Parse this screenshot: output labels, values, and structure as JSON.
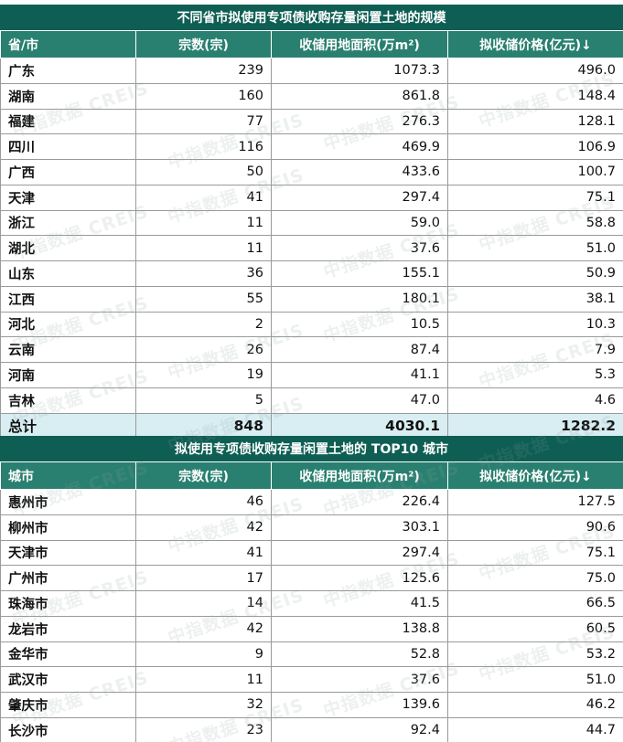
{
  "table1": {
    "title": "不同省市拟使用专项债收购存量闲置土地的规模",
    "headers": [
      "省/市",
      "宗数(宗)",
      "收储用地面积(万m²)",
      "拟收储价格(亿元)↓"
    ],
    "rows": [
      [
        "广东",
        "239",
        "1073.3",
        "496.0"
      ],
      [
        "湖南",
        "160",
        "861.8",
        "148.4"
      ],
      [
        "福建",
        "77",
        "276.3",
        "128.1"
      ],
      [
        "四川",
        "116",
        "469.9",
        "106.9"
      ],
      [
        "广西",
        "50",
        "433.6",
        "100.7"
      ],
      [
        "天津",
        "41",
        "297.4",
        "75.1"
      ],
      [
        "浙江",
        "11",
        "59.0",
        "58.8"
      ],
      [
        "湖北",
        "11",
        "37.6",
        "51.0"
      ],
      [
        "山东",
        "36",
        "155.1",
        "50.9"
      ],
      [
        "江西",
        "55",
        "180.1",
        "38.1"
      ],
      [
        "河北",
        "2",
        "10.5",
        "10.3"
      ],
      [
        "云南",
        "26",
        "87.4",
        "7.9"
      ],
      [
        "河南",
        "19",
        "41.1",
        "5.3"
      ],
      [
        "吉林",
        "5",
        "47.0",
        "4.6"
      ]
    ],
    "total": [
      "总计",
      "848",
      "4030.1",
      "1282.2"
    ]
  },
  "table2": {
    "title": "拟使用专项债收购存量闲置土地的 TOP10 城市",
    "headers": [
      "城市",
      "宗数(宗)",
      "收储用地面积(万m²)",
      "拟收储价格(亿元)↓"
    ],
    "rows": [
      [
        "惠州市",
        "46",
        "226.4",
        "127.5"
      ],
      [
        "柳州市",
        "42",
        "303.1",
        "90.6"
      ],
      [
        "天津市",
        "41",
        "297.4",
        "75.1"
      ],
      [
        "广州市",
        "17",
        "125.6",
        "75.0"
      ],
      [
        "珠海市",
        "14",
        "41.5",
        "66.5"
      ],
      [
        "龙岩市",
        "42",
        "138.8",
        "60.5"
      ],
      [
        "金华市",
        "9",
        "52.8",
        "53.2"
      ],
      [
        "武汉市",
        "11",
        "37.6",
        "51.0"
      ],
      [
        "肇庆市",
        "32",
        "139.6",
        "46.2"
      ],
      [
        "长沙市",
        "23",
        "92.4",
        "44.7"
      ]
    ]
  },
  "watermark": "中指数据 CREIS"
}
